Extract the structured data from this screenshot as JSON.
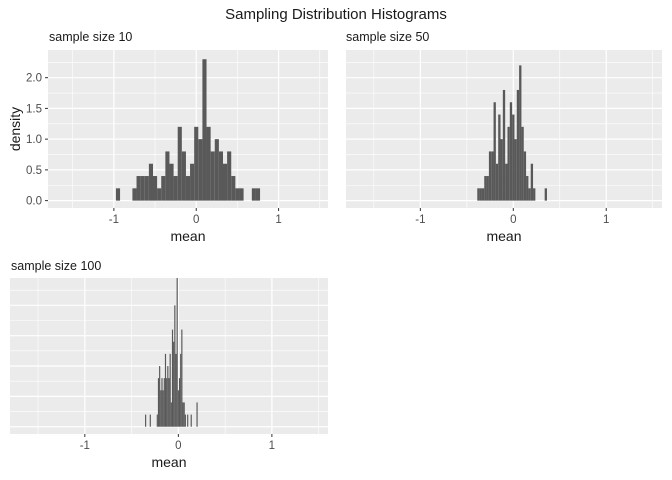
{
  "title": "Sampling Distribution Histograms",
  "chart_data": [
    {
      "type": "bar",
      "subtitle": "sample size 10",
      "xlabel": "mean",
      "ylabel": "density",
      "xlim": [
        -1.8,
        1.6
      ],
      "ylim": [
        -0.12,
        2.45
      ],
      "xticks": [
        -1,
        0,
        1
      ],
      "xtick_labels": [
        "-1",
        "0",
        "1"
      ],
      "yticks": [
        0,
        0.5,
        1,
        1.5,
        2
      ],
      "ytick_labels": [
        "0.0",
        "0.5",
        "1.0",
        "1.5",
        "2.0"
      ],
      "grid": true,
      "bin_width": 0.05,
      "bins": [
        {
          "x": -0.95,
          "y": 0.2
        },
        {
          "x": -0.75,
          "y": 0.2
        },
        {
          "x": -0.7,
          "y": 0.4
        },
        {
          "x": -0.65,
          "y": 0.4
        },
        {
          "x": -0.6,
          "y": 0.4
        },
        {
          "x": -0.55,
          "y": 0.6
        },
        {
          "x": -0.5,
          "y": 0.4
        },
        {
          "x": -0.45,
          "y": 0.2
        },
        {
          "x": -0.4,
          "y": 0.4
        },
        {
          "x": -0.35,
          "y": 0.8
        },
        {
          "x": -0.3,
          "y": 0.6
        },
        {
          "x": -0.25,
          "y": 0.4
        },
        {
          "x": -0.2,
          "y": 1.2
        },
        {
          "x": -0.15,
          "y": 0.8
        },
        {
          "x": -0.1,
          "y": 0.4
        },
        {
          "x": -0.05,
          "y": 0.6
        },
        {
          "x": 0.0,
          "y": 1.2
        },
        {
          "x": 0.05,
          "y": 1.0
        },
        {
          "x": 0.1,
          "y": 2.3
        },
        {
          "x": 0.15,
          "y": 1.2
        },
        {
          "x": 0.2,
          "y": 0.8
        },
        {
          "x": 0.25,
          "y": 1.0
        },
        {
          "x": 0.3,
          "y": 0.8
        },
        {
          "x": 0.35,
          "y": 0.6
        },
        {
          "x": 0.4,
          "y": 0.8
        },
        {
          "x": 0.45,
          "y": 0.4
        },
        {
          "x": 0.5,
          "y": 0.2
        },
        {
          "x": 0.55,
          "y": 0.2
        },
        {
          "x": 0.7,
          "y": 0.2
        },
        {
          "x": 0.75,
          "y": 0.2
        }
      ]
    },
    {
      "type": "bar",
      "subtitle": "sample size 50",
      "xlabel": "mean",
      "xlim": [
        -1.8,
        1.6
      ],
      "ylim": [
        -0.12,
        2.45
      ],
      "xticks": [
        -1,
        0,
        1
      ],
      "xtick_labels": [
        "-1",
        "0",
        "1"
      ],
      "grid": true,
      "bin_width": 0.025,
      "bins": [
        {
          "x": -0.375,
          "y": 0.2
        },
        {
          "x": -0.35,
          "y": 0.2
        },
        {
          "x": -0.325,
          "y": 0.2
        },
        {
          "x": -0.3,
          "y": 0.4
        },
        {
          "x": -0.275,
          "y": 0.4
        },
        {
          "x": -0.25,
          "y": 0.8
        },
        {
          "x": -0.225,
          "y": 0.8
        },
        {
          "x": -0.2,
          "y": 1.6
        },
        {
          "x": -0.175,
          "y": 0.6
        },
        {
          "x": -0.15,
          "y": 1.4
        },
        {
          "x": -0.125,
          "y": 1.0
        },
        {
          "x": -0.1,
          "y": 1.8
        },
        {
          "x": -0.075,
          "y": 0.6
        },
        {
          "x": -0.05,
          "y": 1.2
        },
        {
          "x": -0.025,
          "y": 1.6
        },
        {
          "x": 0.0,
          "y": 1.4
        },
        {
          "x": 0.025,
          "y": 1.0
        },
        {
          "x": 0.05,
          "y": 1.8
        },
        {
          "x": 0.075,
          "y": 2.2
        },
        {
          "x": 0.1,
          "y": 1.2
        },
        {
          "x": 0.125,
          "y": 0.8
        },
        {
          "x": 0.15,
          "y": 0.4
        },
        {
          "x": 0.175,
          "y": 0.2
        },
        {
          "x": 0.2,
          "y": 0.6
        },
        {
          "x": 0.225,
          "y": 0.2
        },
        {
          "x": 0.35,
          "y": 0.2
        }
      ]
    },
    {
      "type": "bar",
      "subtitle": "sample size 100",
      "xlabel": "mean",
      "xlim": [
        -1.8,
        1.6
      ],
      "ylim": [
        -0.12,
        2.45
      ],
      "xticks": [
        -1,
        0,
        1
      ],
      "xtick_labels": [
        "-1",
        "0",
        "1"
      ],
      "grid": true,
      "bin_width": 0.0125,
      "bins": [
        {
          "x": -0.35,
          "y": 0.2
        },
        {
          "x": -0.3,
          "y": 0.2
        },
        {
          "x": -0.225,
          "y": 0.2
        },
        {
          "x": -0.2125,
          "y": 0.8
        },
        {
          "x": -0.2,
          "y": 1.0
        },
        {
          "x": -0.1875,
          "y": 0.6
        },
        {
          "x": -0.175,
          "y": 0.8
        },
        {
          "x": -0.1625,
          "y": 0.6
        },
        {
          "x": -0.15,
          "y": 0.8
        },
        {
          "x": -0.1375,
          "y": 1.2
        },
        {
          "x": -0.125,
          "y": 0.8
        },
        {
          "x": -0.1125,
          "y": 1.0
        },
        {
          "x": -0.1,
          "y": 0.8
        },
        {
          "x": -0.0875,
          "y": 1.2
        },
        {
          "x": -0.075,
          "y": 0.4
        },
        {
          "x": -0.0625,
          "y": 1.6
        },
        {
          "x": -0.05,
          "y": 1.4
        },
        {
          "x": -0.0375,
          "y": 2.0
        },
        {
          "x": -0.025,
          "y": 1.2
        },
        {
          "x": -0.0125,
          "y": 2.45
        },
        {
          "x": 0.0,
          "y": 0.6
        },
        {
          "x": 0.0125,
          "y": 0.8
        },
        {
          "x": 0.025,
          "y": 1.2
        },
        {
          "x": 0.0375,
          "y": 1.6
        },
        {
          "x": 0.05,
          "y": 0.4
        },
        {
          "x": 0.0625,
          "y": 0.4
        },
        {
          "x": 0.075,
          "y": 0.2
        },
        {
          "x": 0.1,
          "y": 0.2
        },
        {
          "x": 0.1375,
          "y": 0.2
        },
        {
          "x": 0.2,
          "y": 0.4
        }
      ]
    }
  ],
  "colors": {
    "panel_background": "#ebebeb",
    "grid": "#ffffff",
    "bar": "#595959",
    "tick_text": "#4d4d4d",
    "text": "#1a1a1a"
  }
}
